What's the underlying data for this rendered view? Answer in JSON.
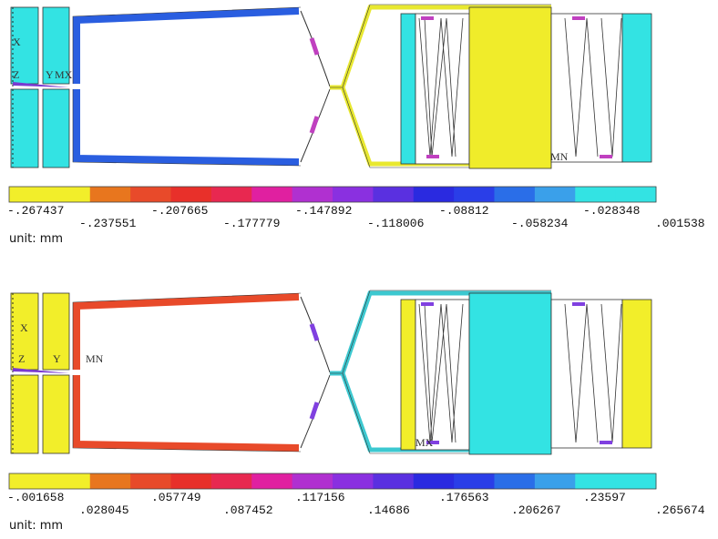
{
  "panels": [
    {
      "annotations": [
        "X",
        "Z",
        "Y",
        "MX",
        "MN"
      ],
      "legend": {
        "labels": [
          "-.267437",
          "-.237551",
          "-.207665",
          "-.177779",
          "-.147892",
          "-.118006",
          "-.08812",
          "-.058234",
          "-.028348",
          ".001538"
        ],
        "unit": "unit: mm"
      }
    },
    {
      "annotations": [
        "X",
        "Z",
        "Y",
        "MN",
        "MX"
      ],
      "legend": {
        "labels": [
          "-.001658",
          ".028045",
          ".057749",
          ".087452",
          ".117156",
          ".14686",
          ".176563",
          ".206267",
          ".23597",
          ".265674"
        ],
        "unit": "unit: mm"
      }
    }
  ]
}
